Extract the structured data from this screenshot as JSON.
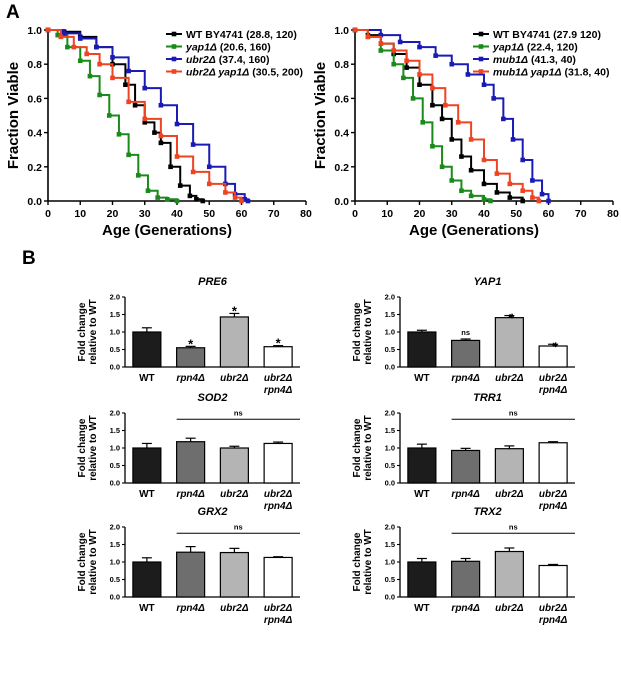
{
  "figure": {
    "panel_a": "A",
    "panel_b": "B"
  },
  "chart_data": [
    {
      "type": "line",
      "title": "",
      "xlabel": "Age (Generations)",
      "ylabel": "Fraction Viable",
      "xlim": [
        0,
        80
      ],
      "ylim": [
        0,
        1.0
      ],
      "xticks": [
        "0",
        "10",
        "20",
        "30",
        "40",
        "50",
        "60",
        "70",
        "80"
      ],
      "yticks": [
        "0.0",
        "0.2",
        "0.4",
        "0.6",
        "0.8",
        "1.0"
      ],
      "legend_position": "top-right",
      "series": [
        {
          "name": "WT BY4741",
          "legend_suffix": " (28.8, 120)",
          "italic": false,
          "color": "#000000",
          "points": [
            [
              0,
              1
            ],
            [
              5,
              0.99
            ],
            [
              10,
              0.96
            ],
            [
              15,
              0.9
            ],
            [
              20,
              0.8
            ],
            [
              24,
              0.68
            ],
            [
              27,
              0.56
            ],
            [
              30,
              0.46
            ],
            [
              33,
              0.4
            ],
            [
              35,
              0.34
            ],
            [
              38,
              0.2
            ],
            [
              41,
              0.09
            ],
            [
              44,
              0.03
            ],
            [
              46,
              0.01
            ],
            [
              48,
              0
            ]
          ]
        },
        {
          "name": "yap1Δ",
          "legend_suffix": " (20.6, 160)",
          "italic": true,
          "color": "#1a8a1a",
          "points": [
            [
              0,
              1
            ],
            [
              3,
              0.97
            ],
            [
              6,
              0.9
            ],
            [
              10,
              0.82
            ],
            [
              13,
              0.73
            ],
            [
              16,
              0.62
            ],
            [
              19,
              0.5
            ],
            [
              22,
              0.39
            ],
            [
              25,
              0.27
            ],
            [
              28,
              0.15
            ],
            [
              31,
              0.06
            ],
            [
              34,
              0.02
            ],
            [
              37,
              0.01
            ],
            [
              40,
              0
            ]
          ]
        },
        {
          "name": "ubr2Δ",
          "legend_suffix": " (37.4, 160)",
          "italic": true,
          "color": "#1a1ab4",
          "points": [
            [
              0,
              1
            ],
            [
              5,
              0.98
            ],
            [
              10,
              0.95
            ],
            [
              15,
              0.9
            ],
            [
              20,
              0.84
            ],
            [
              25,
              0.76
            ],
            [
              30,
              0.66
            ],
            [
              35,
              0.56
            ],
            [
              40,
              0.45
            ],
            [
              45,
              0.33
            ],
            [
              50,
              0.2
            ],
            [
              55,
              0.1
            ],
            [
              58,
              0.04
            ],
            [
              61,
              0.01
            ],
            [
              62,
              0
            ]
          ]
        },
        {
          "name": "ubr2Δ yap1Δ",
          "legend_suffix": " (30.5, 200)",
          "italic": true,
          "color": "#ee4422",
          "points": [
            [
              0,
              1
            ],
            [
              4,
              0.96
            ],
            [
              8,
              0.9
            ],
            [
              12,
              0.86
            ],
            [
              16,
              0.8
            ],
            [
              20,
              0.72
            ],
            [
              25,
              0.58
            ],
            [
              30,
              0.48
            ],
            [
              35,
              0.38
            ],
            [
              40,
              0.26
            ],
            [
              45,
              0.17
            ],
            [
              50,
              0.1
            ],
            [
              55,
              0.05
            ],
            [
              58,
              0.02
            ],
            [
              60,
              0
            ]
          ]
        }
      ]
    },
    {
      "type": "line",
      "title": "",
      "xlabel": "Age (Generations)",
      "ylabel": "Fraction Viable",
      "xlim": [
        0,
        80
      ],
      "ylim": [
        0,
        1.0
      ],
      "xticks": [
        "0",
        "10",
        "20",
        "30",
        "40",
        "50",
        "60",
        "70",
        "80"
      ],
      "yticks": [
        "0.0",
        "0.2",
        "0.4",
        "0.6",
        "0.8",
        "1.0"
      ],
      "legend_position": "top-right",
      "series": [
        {
          "name": "WT BY4741",
          "legend_suffix": " (27.9 120)",
          "italic": false,
          "color": "#000000",
          "points": [
            [
              0,
              1
            ],
            [
              4,
              0.97
            ],
            [
              8,
              0.92
            ],
            [
              12,
              0.86
            ],
            [
              16,
              0.78
            ],
            [
              20,
              0.68
            ],
            [
              24,
              0.56
            ],
            [
              27,
              0.48
            ],
            [
              30,
              0.36
            ],
            [
              33,
              0.26
            ],
            [
              36,
              0.18
            ],
            [
              40,
              0.1
            ],
            [
              44,
              0.05
            ],
            [
              48,
              0.02
            ],
            [
              52,
              0
            ]
          ]
        },
        {
          "name": "yap1Δ",
          "legend_suffix": " (22.4, 120)",
          "italic": true,
          "color": "#1a8a1a",
          "points": [
            [
              0,
              1
            ],
            [
              4,
              0.96
            ],
            [
              8,
              0.88
            ],
            [
              12,
              0.8
            ],
            [
              15,
              0.72
            ],
            [
              18,
              0.6
            ],
            [
              21,
              0.46
            ],
            [
              24,
              0.32
            ],
            [
              27,
              0.2
            ],
            [
              30,
              0.12
            ],
            [
              33,
              0.06
            ],
            [
              36,
              0.03
            ],
            [
              40,
              0.01
            ],
            [
              42,
              0
            ]
          ]
        },
        {
          "name": "mub1Δ",
          "legend_suffix": " (41.3, 40)",
          "italic": true,
          "color": "#1a1ab4",
          "points": [
            [
              0,
              1
            ],
            [
              8,
              0.97
            ],
            [
              14,
              0.93
            ],
            [
              20,
              0.9
            ],
            [
              25,
              0.85
            ],
            [
              30,
              0.8
            ],
            [
              35,
              0.74
            ],
            [
              40,
              0.68
            ],
            [
              43,
              0.6
            ],
            [
              46,
              0.48
            ],
            [
              49,
              0.36
            ],
            [
              52,
              0.24
            ],
            [
              55,
              0.12
            ],
            [
              58,
              0.04
            ],
            [
              60,
              0
            ]
          ]
        },
        {
          "name": "mub1Δ yap1Δ",
          "legend_suffix": " (31.8, 40)",
          "italic": true,
          "color": "#ee4422",
          "points": [
            [
              0,
              1
            ],
            [
              4,
              0.96
            ],
            [
              8,
              0.92
            ],
            [
              12,
              0.88
            ],
            [
              16,
              0.82
            ],
            [
              20,
              0.74
            ],
            [
              24,
              0.66
            ],
            [
              28,
              0.56
            ],
            [
              32,
              0.46
            ],
            [
              36,
              0.36
            ],
            [
              40,
              0.24
            ],
            [
              44,
              0.16
            ],
            [
              48,
              0.1
            ],
            [
              52,
              0.06
            ],
            [
              55,
              0.02
            ],
            [
              57,
              0
            ]
          ]
        }
      ]
    },
    {
      "type": "bar",
      "title": "PRE6",
      "ylabel_line1": "Fold change",
      "ylabel_line2": "relative to WT",
      "ylim": [
        0,
        2.0
      ],
      "yticks": [
        "0.0",
        "0.5",
        "1.0",
        "1.5",
        "2.0"
      ],
      "categories": [
        "WT",
        "rpn4Δ",
        "ubr2Δ",
        "ubr2Δ rpn4Δ"
      ],
      "values": [
        1.0,
        0.55,
        1.43,
        0.58
      ],
      "errors": [
        0.12,
        0.04,
        0.1,
        0.03
      ],
      "fills": [
        "#1c1c1c",
        "#6e6e6e",
        "#b4b4b4",
        "#ffffff"
      ],
      "annotations": [
        "",
        "*",
        "*",
        "*"
      ],
      "bracket_label": ""
    },
    {
      "type": "bar",
      "title": "YAP1",
      "ylabel_line1": "Fold change",
      "ylabel_line2": "relative to WT",
      "ylim": [
        0,
        2.0
      ],
      "yticks": [
        "0.0",
        "0.5",
        "1.0",
        "1.5",
        "2.0"
      ],
      "categories": [
        "WT",
        "rpn4Δ",
        "ubr2Δ",
        "ubr2Δ rpn4Δ"
      ],
      "values": [
        1.0,
        0.76,
        1.41,
        0.6
      ],
      "errors": [
        0.05,
        0.04,
        0.06,
        0.05
      ],
      "fills": [
        "#1c1c1c",
        "#6e6e6e",
        "#b4b4b4",
        "#ffffff"
      ],
      "annotations": [
        "",
        "ns",
        "**",
        "**"
      ],
      "bracket_label": ""
    },
    {
      "type": "bar",
      "title": "SOD2",
      "ylabel_line1": "Fold change",
      "ylabel_line2": "relative to WT",
      "ylim": [
        0,
        2.0
      ],
      "yticks": [
        "0.0",
        "0.5",
        "1.0",
        "1.5",
        "2.0"
      ],
      "categories": [
        "WT",
        "rpn4Δ",
        "ubr2Δ",
        "ubr2Δ rpn4Δ"
      ],
      "values": [
        1.0,
        1.18,
        1.0,
        1.13
      ],
      "errors": [
        0.13,
        0.1,
        0.05,
        0.04
      ],
      "fills": [
        "#1c1c1c",
        "#6e6e6e",
        "#b4b4b4",
        "#ffffff"
      ],
      "annotations": [
        "",
        "",
        "",
        ""
      ],
      "bracket_label": "ns"
    },
    {
      "type": "bar",
      "title": "TRR1",
      "ylabel_line1": "Fold change",
      "ylabel_line2": "relative to WT",
      "ylim": [
        0,
        2.0
      ],
      "yticks": [
        "0.0",
        "0.5",
        "1.0",
        "1.5",
        "2.0"
      ],
      "categories": [
        "WT",
        "rpn4Δ",
        "ubr2Δ",
        "ubr2Δ rpn4Δ"
      ],
      "values": [
        1.0,
        0.93,
        0.98,
        1.15
      ],
      "errors": [
        0.11,
        0.06,
        0.08,
        0.03
      ],
      "fills": [
        "#1c1c1c",
        "#6e6e6e",
        "#b4b4b4",
        "#ffffff"
      ],
      "annotations": [
        "",
        "",
        "",
        ""
      ],
      "bracket_label": "ns"
    },
    {
      "type": "bar",
      "title": "GRX2",
      "ylabel_line1": "Fold change",
      "ylabel_line2": "relative to WT",
      "ylim": [
        0,
        2.0
      ],
      "yticks": [
        "0.0",
        "0.5",
        "1.0",
        "1.5",
        "2.0"
      ],
      "categories": [
        "WT",
        "rpn4Δ",
        "ubr2Δ",
        "ubr2Δ rpn4Δ"
      ],
      "values": [
        1.0,
        1.28,
        1.27,
        1.13
      ],
      "errors": [
        0.12,
        0.16,
        0.12,
        0.02
      ],
      "fills": [
        "#1c1c1c",
        "#6e6e6e",
        "#b4b4b4",
        "#ffffff"
      ],
      "annotations": [
        "",
        "",
        "",
        ""
      ],
      "bracket_label": "ns"
    },
    {
      "type": "bar",
      "title": "TRX2",
      "ylabel_line1": "Fold change",
      "ylabel_line2": "relative to WT",
      "ylim": [
        0,
        2.0
      ],
      "yticks": [
        "0.0",
        "0.5",
        "1.0",
        "1.5",
        "2.0"
      ],
      "categories": [
        "WT",
        "rpn4Δ",
        "ubr2Δ",
        "ubr2Δ rpn4Δ"
      ],
      "values": [
        1.0,
        1.02,
        1.3,
        0.9
      ],
      "errors": [
        0.1,
        0.08,
        0.1,
        0.03
      ],
      "fills": [
        "#1c1c1c",
        "#6e6e6e",
        "#b4b4b4",
        "#ffffff"
      ],
      "annotations": [
        "",
        "",
        "",
        ""
      ],
      "bracket_label": "ns"
    }
  ]
}
